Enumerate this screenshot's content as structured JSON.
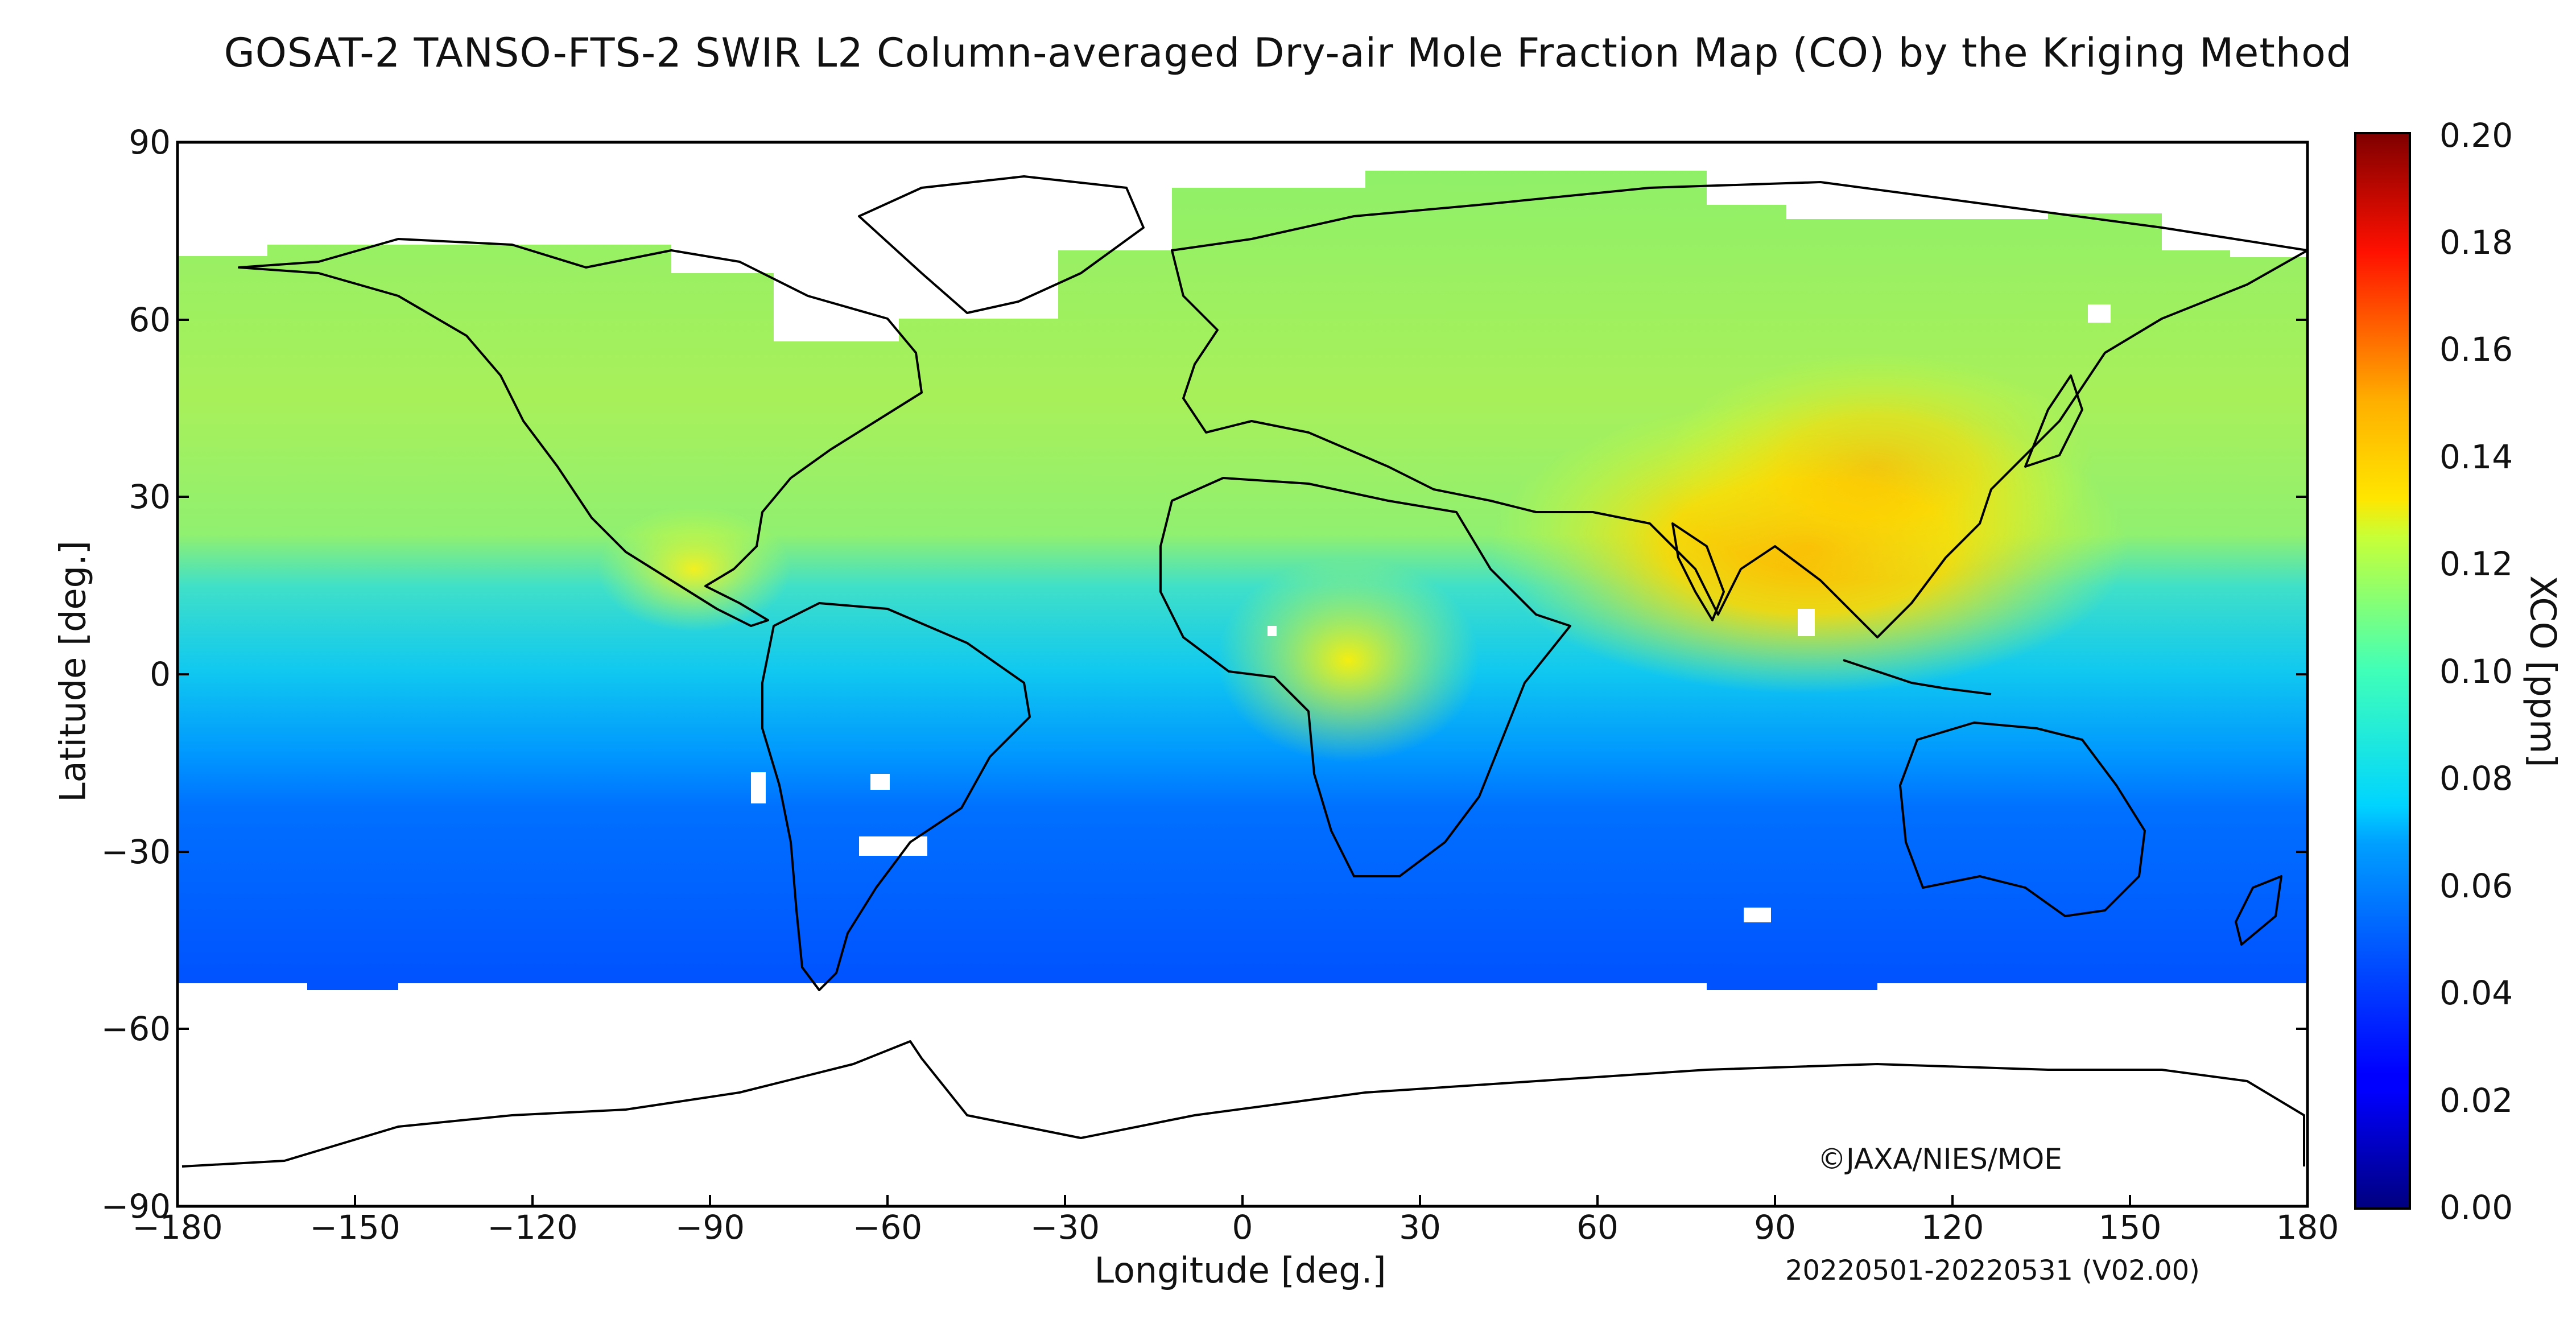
{
  "title": "GOSAT-2 TANSO-FTS-2 SWIR L2 Column-averaged Dry-air Mole Fraction Map (CO) by the Kriging Method",
  "map": {
    "xlabel": "Longitude [deg.]",
    "ylabel": "Latitude [deg.]",
    "lon_range": [
      -180,
      180
    ],
    "lat_range": [
      -90,
      90
    ],
    "lon_ticks": [
      "−180",
      "−150",
      "−120",
      "−90",
      "−60",
      "−30",
      "0",
      "30",
      "60",
      "90",
      "120",
      "150",
      "180"
    ],
    "lat_ticks": [
      "90",
      "60",
      "30",
      "0",
      "−30",
      "−60",
      "−90"
    ],
    "colorbar": {
      "label": "XCO [ppm]",
      "range": [
        0.0,
        0.2
      ],
      "ticks": [
        "0.20",
        "0.18",
        "0.16",
        "0.14",
        "0.12",
        "0.10",
        "0.08",
        "0.06",
        "0.04",
        "0.02",
        "0.00"
      ],
      "colormap": "jet"
    },
    "copyright": "©JAXA/NIES/MOE",
    "period": "20220501-20220531 (V02.00)"
  }
}
